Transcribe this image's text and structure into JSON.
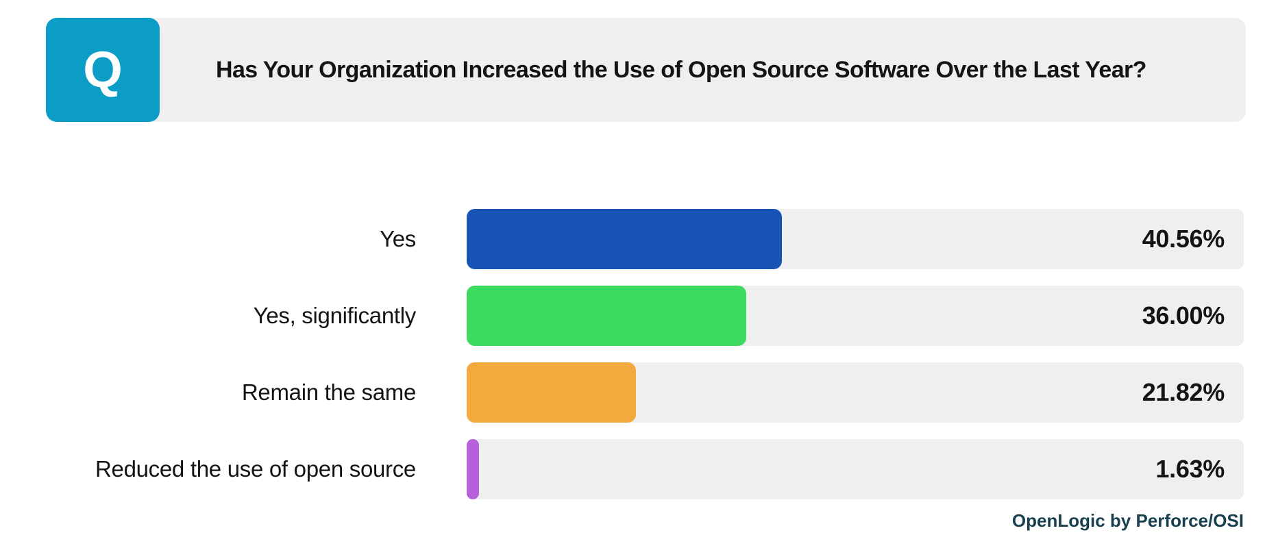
{
  "header": {
    "q_badge": "Q",
    "title": "Has Your Organization Increased the Use of Open Source Software Over the Last Year?"
  },
  "footer": {
    "attribution": "OpenLogic by Perforce/OSI"
  },
  "colors": {
    "q_badge_bg": "#0c9dc7",
    "banner_bg": "#efefef",
    "track_bg": "#efefef",
    "title_text": "#141414",
    "attribution_text": "#173f50"
  },
  "chart_data": {
    "type": "bar",
    "orientation": "horizontal",
    "title": "Has Your Organization Increased the Use of Open Source Software Over the Last Year?",
    "categories": [
      "Yes",
      "Yes, significantly",
      "Remain the same",
      "Reduced the use of open source"
    ],
    "values": [
      40.56,
      36.0,
      21.82,
      1.63
    ],
    "display_values": [
      "40.56%",
      "36.00%",
      "21.82%",
      "1.63%"
    ],
    "bar_colors": [
      "#1754b5",
      "#3dda60",
      "#f4a93d",
      "#b660dc"
    ],
    "xlim": [
      0,
      100
    ],
    "unit": "percent",
    "grid": false,
    "legend": false,
    "source": "OpenLogic by Perforce/OSI"
  }
}
